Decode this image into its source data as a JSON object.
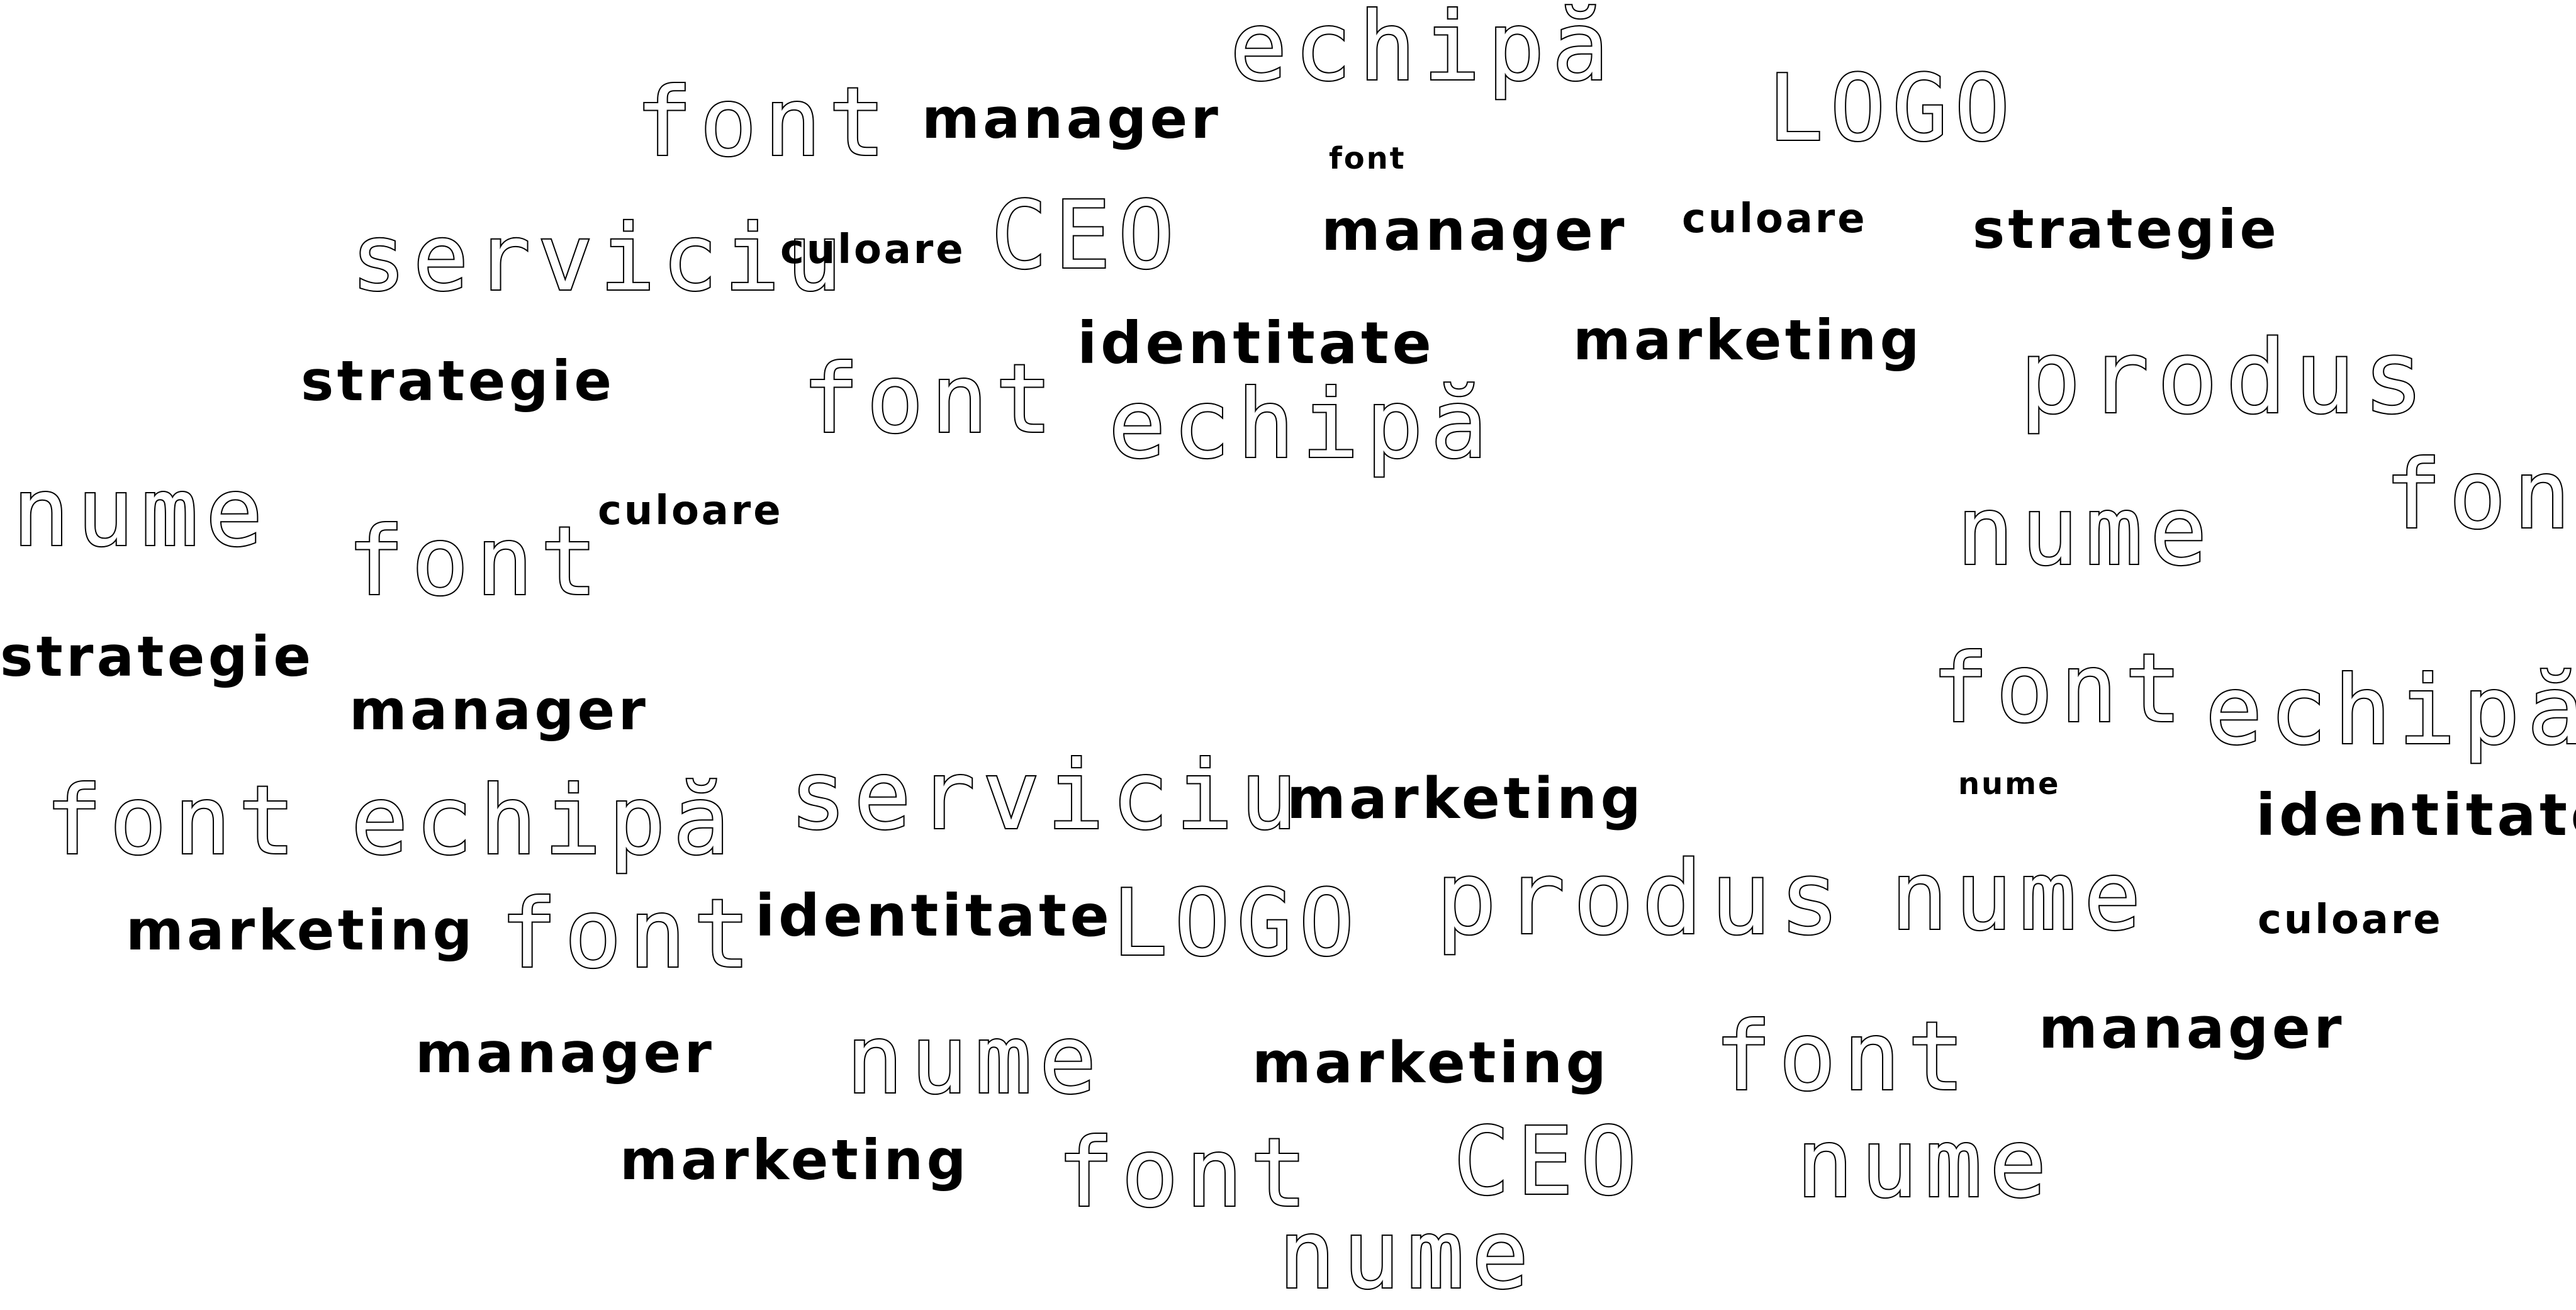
{
  "words": [
    {
      "text": "echipă",
      "style": "outline"
    },
    {
      "text": "font",
      "style": "outline"
    },
    {
      "text": "manager",
      "style": "solid"
    },
    {
      "text": "LOGO",
      "style": "outline"
    },
    {
      "text": "font",
      "style": "solid"
    },
    {
      "text": "serviciu",
      "style": "outline"
    },
    {
      "text": "culoare",
      "style": "solid"
    },
    {
      "text": "CEO",
      "style": "outline"
    },
    {
      "text": "manager",
      "style": "solid"
    },
    {
      "text": "culoare",
      "style": "solid"
    },
    {
      "text": "strategie",
      "style": "solid"
    },
    {
      "text": "identitate",
      "style": "solid"
    },
    {
      "text": "marketing",
      "style": "solid"
    },
    {
      "text": "strategie",
      "style": "solid"
    },
    {
      "text": "font",
      "style": "outline"
    },
    {
      "text": "echipă",
      "style": "outline"
    },
    {
      "text": "produs",
      "style": "outline"
    },
    {
      "text": "nume",
      "style": "outline"
    },
    {
      "text": "culoare",
      "style": "solid"
    },
    {
      "text": "font",
      "style": "outline"
    },
    {
      "text": "nume",
      "style": "outline"
    },
    {
      "text": "font",
      "style": "outline"
    },
    {
      "text": "strategie",
      "style": "solid"
    },
    {
      "text": "manager",
      "style": "solid"
    },
    {
      "text": "font",
      "style": "outline"
    },
    {
      "text": "echipă",
      "style": "outline"
    },
    {
      "text": "font",
      "style": "outline"
    },
    {
      "text": "echipă",
      "style": "outline"
    },
    {
      "text": "serviciu",
      "style": "outline"
    },
    {
      "text": "marketing",
      "style": "solid"
    },
    {
      "text": "nume",
      "style": "solid"
    },
    {
      "text": "identitate",
      "style": "solid"
    },
    {
      "text": "marketing",
      "style": "solid"
    },
    {
      "text": "font",
      "style": "outline"
    },
    {
      "text": "identitate",
      "style": "solid"
    },
    {
      "text": "LOGO",
      "style": "outline"
    },
    {
      "text": "produs",
      "style": "outline"
    },
    {
      "text": "nume",
      "style": "outline"
    },
    {
      "text": "culoare",
      "style": "solid"
    },
    {
      "text": "manager",
      "style": "solid"
    },
    {
      "text": "nume",
      "style": "outline"
    },
    {
      "text": "marketing",
      "style": "solid"
    },
    {
      "text": "font",
      "style": "outline"
    },
    {
      "text": "manager",
      "style": "solid"
    },
    {
      "text": "marketing",
      "style": "solid"
    },
    {
      "text": "font",
      "style": "outline"
    },
    {
      "text": "CEO",
      "style": "outline"
    },
    {
      "text": "nume",
      "style": "outline"
    },
    {
      "text": "nume",
      "style": "outline"
    }
  ]
}
